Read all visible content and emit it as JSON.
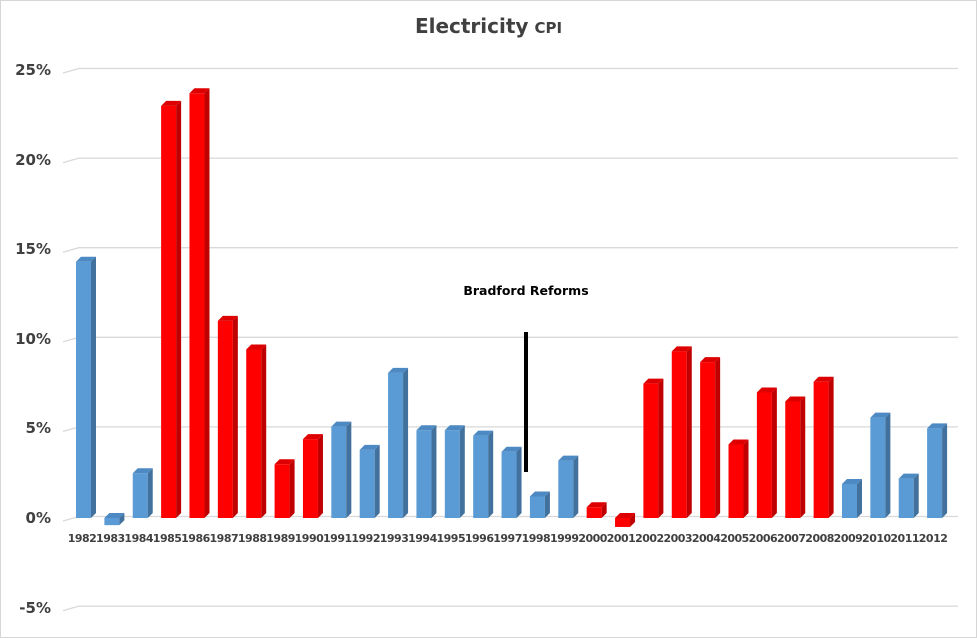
{
  "title": {
    "main": "Electricity",
    "sub": "CPI"
  },
  "annotation": {
    "text": "Bradford Reforms"
  },
  "colors": {
    "blue": {
      "face": "#5B9BD5",
      "side": "#41719C",
      "top": "#4D89C2"
    },
    "red": {
      "face": "#FE0000",
      "side": "#C00000",
      "top": "#DE0000"
    },
    "gridline": "#D9D9D9",
    "axis_text": "#404040",
    "title_text": "#404040",
    "annotation_line": "#000000"
  },
  "chart_data": {
    "type": "bar",
    "title": "Electricity CPI",
    "xlabel": "",
    "ylabel": "",
    "ylim": [
      -5,
      25
    ],
    "grid": true,
    "legend": "none",
    "y_ticks": [
      {
        "value": 25,
        "label": "25%"
      },
      {
        "value": 20,
        "label": "20%"
      },
      {
        "value": 15,
        "label": "15%"
      },
      {
        "value": 10,
        "label": "10%"
      },
      {
        "value": 5,
        "label": "5%"
      },
      {
        "value": 0,
        "label": "0%"
      },
      {
        "value": -5,
        "label": "-5%"
      }
    ],
    "annotation": {
      "text": "Bradford Reforms",
      "between_years": [
        "1997",
        "1998"
      ],
      "line_span_pct": [
        2.7,
        10.4
      ]
    },
    "bars": [
      {
        "year": "1982",
        "value": 14.3,
        "color": "blue"
      },
      {
        "year": "1983",
        "value": -0.4,
        "color": "blue"
      },
      {
        "year": "1984",
        "value": 2.5,
        "color": "blue"
      },
      {
        "year": "1985",
        "value": 23.0,
        "color": "red"
      },
      {
        "year": "1986",
        "value": 23.7,
        "color": "red"
      },
      {
        "year": "1987",
        "value": 11.0,
        "color": "red"
      },
      {
        "year": "1988",
        "value": 9.4,
        "color": "red"
      },
      {
        "year": "1989",
        "value": 3.0,
        "color": "red"
      },
      {
        "year": "1990",
        "value": 4.4,
        "color": "red"
      },
      {
        "year": "1991",
        "value": 5.1,
        "color": "blue"
      },
      {
        "year": "1992",
        "value": 3.8,
        "color": "blue"
      },
      {
        "year": "1993",
        "value": 8.1,
        "color": "blue"
      },
      {
        "year": "1994",
        "value": 4.9,
        "color": "blue"
      },
      {
        "year": "1995",
        "value": 4.9,
        "color": "blue"
      },
      {
        "year": "1996",
        "value": 4.6,
        "color": "blue"
      },
      {
        "year": "1997",
        "value": 3.7,
        "color": "blue"
      },
      {
        "year": "1998",
        "value": 1.2,
        "color": "blue"
      },
      {
        "year": "1999",
        "value": 3.2,
        "color": "blue"
      },
      {
        "year": "2000",
        "value": 0.6,
        "color": "red"
      },
      {
        "year": "2001",
        "value": -0.5,
        "color": "red"
      },
      {
        "year": "2002",
        "value": 7.5,
        "color": "red"
      },
      {
        "year": "2003",
        "value": 9.3,
        "color": "red"
      },
      {
        "year": "2004",
        "value": 8.7,
        "color": "red"
      },
      {
        "year": "2005",
        "value": 4.1,
        "color": "red"
      },
      {
        "year": "2006",
        "value": 7.0,
        "color": "red"
      },
      {
        "year": "2007",
        "value": 6.5,
        "color": "red"
      },
      {
        "year": "2008",
        "value": 7.6,
        "color": "red"
      },
      {
        "year": "2009",
        "value": 1.9,
        "color": "blue"
      },
      {
        "year": "2010",
        "value": 5.6,
        "color": "blue"
      },
      {
        "year": "2011",
        "value": 2.2,
        "color": "blue"
      },
      {
        "year": "2012",
        "value": 5.0,
        "color": "blue"
      }
    ]
  }
}
